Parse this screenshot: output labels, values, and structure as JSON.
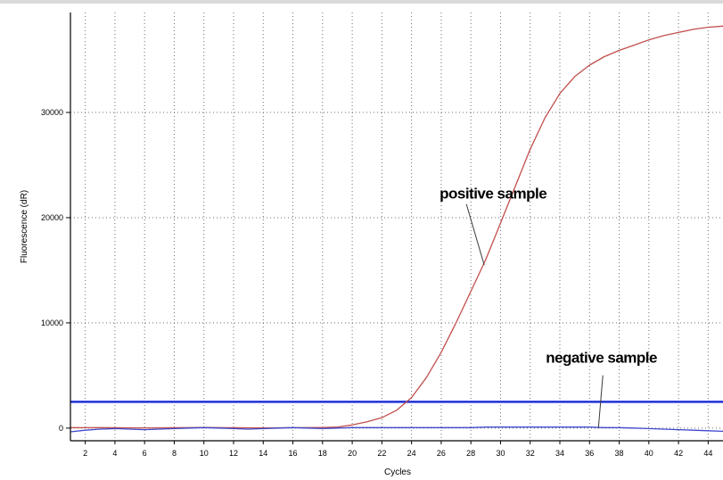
{
  "chart_data": {
    "type": "line",
    "title": "",
    "xlabel": "Cycles",
    "ylabel": "Fluorescence (dR)",
    "xlim": [
      1,
      45
    ],
    "ylim": [
      -1200,
      39500
    ],
    "xticks": [
      2,
      4,
      6,
      8,
      10,
      12,
      14,
      16,
      18,
      20,
      22,
      24,
      26,
      28,
      30,
      32,
      34,
      36,
      38,
      40,
      42,
      44
    ],
    "yticks": [
      0,
      10000,
      20000,
      30000
    ],
    "grid": true,
    "series": [
      {
        "color": "#c0504d",
        "x": [
          1,
          2,
          3,
          4,
          5,
          6,
          7,
          8,
          9,
          10,
          11,
          12,
          13,
          14,
          15,
          16,
          17,
          18,
          19,
          20,
          21,
          22,
          23,
          24,
          25,
          26,
          27,
          28,
          29,
          30,
          31,
          32,
          33,
          34,
          35,
          36,
          37,
          38,
          39,
          40,
          41,
          42,
          43,
          44,
          45
        ],
        "y": [
          50,
          40,
          50,
          40,
          30,
          20,
          30,
          40,
          50,
          60,
          50,
          40,
          30,
          20,
          30,
          40,
          50,
          60,
          100,
          300,
          600,
          1000,
          1700,
          2900,
          4800,
          7200,
          10000,
          13000,
          16000,
          19500,
          23000,
          26500,
          29500,
          31800,
          33400,
          34500,
          35300,
          35900,
          36400,
          36900,
          37300,
          37600,
          37900,
          38100,
          38200
        ]
      },
      {
        "color": "#3f48cc",
        "x": [
          1,
          2,
          3,
          4,
          5,
          6,
          7,
          8,
          9,
          10,
          11,
          12,
          13,
          14,
          15,
          16,
          17,
          18,
          19,
          20,
          21,
          22,
          23,
          24,
          25,
          26,
          27,
          28,
          29,
          30,
          31,
          32,
          33,
          34,
          35,
          36,
          37,
          38,
          39,
          40,
          41,
          42,
          43,
          44,
          45
        ],
        "y": [
          -350,
          -200,
          -100,
          -50,
          -100,
          -150,
          -100,
          -50,
          0,
          50,
          0,
          -50,
          -100,
          -50,
          0,
          50,
          0,
          -50,
          0,
          50,
          50,
          50,
          50,
          50,
          50,
          50,
          50,
          50,
          100,
          100,
          100,
          100,
          100,
          100,
          100,
          100,
          50,
          50,
          0,
          -50,
          -100,
          -150,
          -200,
          -250,
          -300
        ]
      }
    ],
    "threshold": {
      "y": 2500,
      "color": "#1f2fd8"
    },
    "annotations": [
      {
        "text": "positive sample",
        "x": 29.5,
        "y": 21800
      },
      {
        "text": "negative sample",
        "x": 36.8,
        "y": 6200
      }
    ]
  }
}
